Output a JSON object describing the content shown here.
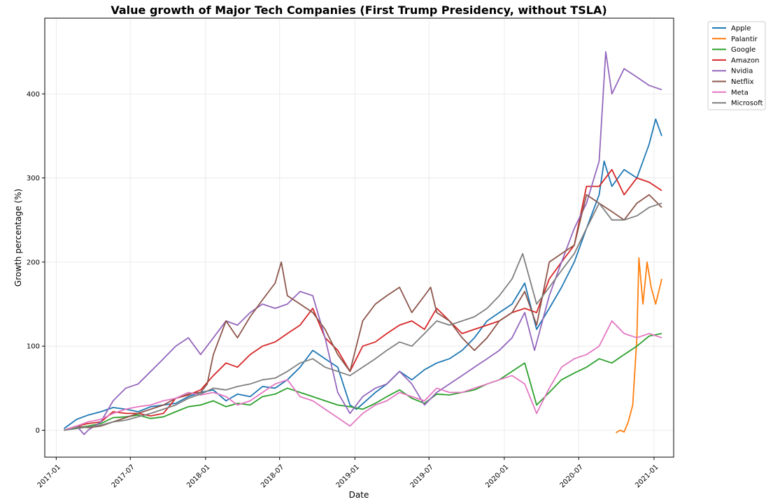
{
  "chart_data": {
    "type": "line",
    "title": "Value growth of Major Tech Companies (First Trump Presidency, without TSLA)",
    "xlabel": "Date",
    "ylabel": "Growth percentage (%)",
    "x_range": [
      "2016-12-04",
      "2021-02-18"
    ],
    "ylim": [
      -32,
      490
    ],
    "grid": true,
    "legend_position": "outside-top-right",
    "x_ticks": [
      "2017-01",
      "2017-07",
      "2018-01",
      "2018-07",
      "2019-01",
      "2019-07",
      "2020-01",
      "2020-07",
      "2021-01"
    ],
    "y_ticks": [
      0,
      100,
      200,
      300,
      400
    ],
    "series": [
      {
        "name": "Apple",
        "color": "#1f77b4",
        "x": [
          "2017-01-20",
          "2017-02-20",
          "2017-03-20",
          "2017-04-20",
          "2017-05-20",
          "2017-06-20",
          "2017-07-20",
          "2017-08-20",
          "2017-09-20",
          "2017-10-20",
          "2017-11-20",
          "2017-12-20",
          "2018-01-20",
          "2018-02-20",
          "2018-03-20",
          "2018-04-20",
          "2018-05-20",
          "2018-06-20",
          "2018-07-20",
          "2018-08-20",
          "2018-09-20",
          "2018-10-20",
          "2018-11-20",
          "2018-12-20",
          "2019-01-05",
          "2019-02-20",
          "2019-03-20",
          "2019-04-20",
          "2019-05-20",
          "2019-06-20",
          "2019-07-20",
          "2019-08-20",
          "2019-09-20",
          "2019-10-20",
          "2019-11-20",
          "2019-12-20",
          "2020-01-20",
          "2020-02-20",
          "2020-03-20",
          "2020-04-20",
          "2020-05-20",
          "2020-06-20",
          "2020-07-20",
          "2020-08-20",
          "2020-09-01",
          "2020-09-20",
          "2020-10-20",
          "2020-11-20",
          "2020-12-20",
          "2021-01-05",
          "2021-01-20"
        ],
        "values": [
          2,
          13,
          18,
          22,
          27,
          25,
          22,
          28,
          30,
          32,
          40,
          45,
          48,
          35,
          43,
          40,
          52,
          50,
          60,
          75,
          95,
          85,
          75,
          30,
          25,
          45,
          55,
          70,
          60,
          72,
          80,
          85,
          95,
          110,
          130,
          140,
          150,
          175,
          120,
          145,
          170,
          200,
          240,
          280,
          320,
          290,
          310,
          300,
          340,
          370,
          350
        ]
      },
      {
        "name": "Palantir",
        "color": "#ff7f0e",
        "x": [
          "2020-09-30",
          "2020-10-10",
          "2020-10-20",
          "2020-10-30",
          "2020-11-10",
          "2020-11-20",
          "2020-11-25",
          "2020-12-05",
          "2020-12-15",
          "2020-12-25",
          "2021-01-05",
          "2021-01-20"
        ],
        "values": [
          -3,
          0,
          -2,
          10,
          30,
          110,
          205,
          150,
          200,
          170,
          150,
          180
        ]
      },
      {
        "name": "Google",
        "color": "#2ca02c",
        "x": [
          "2017-01-20",
          "2017-02-20",
          "2017-03-20",
          "2017-04-20",
          "2017-05-20",
          "2017-06-20",
          "2017-07-20",
          "2017-08-20",
          "2017-09-20",
          "2017-10-20",
          "2017-11-20",
          "2017-12-20",
          "2018-01-20",
          "2018-02-20",
          "2018-03-20",
          "2018-04-20",
          "2018-05-20",
          "2018-06-20",
          "2018-07-20",
          "2018-08-20",
          "2018-09-20",
          "2018-10-20",
          "2018-11-20",
          "2018-12-20",
          "2019-01-20",
          "2019-02-20",
          "2019-03-20",
          "2019-04-20",
          "2019-05-20",
          "2019-06-20",
          "2019-07-20",
          "2019-08-20",
          "2019-09-20",
          "2019-10-20",
          "2019-11-20",
          "2019-12-20",
          "2020-01-20",
          "2020-02-20",
          "2020-03-20",
          "2020-04-20",
          "2020-05-20",
          "2020-06-20",
          "2020-07-20",
          "2020-08-20",
          "2020-09-20",
          "2020-10-20",
          "2020-11-20",
          "2020-12-20",
          "2021-01-20"
        ],
        "values": [
          0,
          3,
          5,
          8,
          15,
          16,
          18,
          14,
          16,
          22,
          28,
          30,
          35,
          28,
          32,
          30,
          40,
          43,
          50,
          45,
          40,
          35,
          30,
          28,
          25,
          32,
          40,
          48,
          38,
          32,
          43,
          42,
          45,
          48,
          55,
          60,
          70,
          80,
          30,
          45,
          60,
          68,
          75,
          85,
          80,
          90,
          100,
          112,
          115
        ]
      },
      {
        "name": "Amazon",
        "color": "#d62728",
        "x": [
          "2017-01-20",
          "2017-02-20",
          "2017-03-20",
          "2017-04-20",
          "2017-05-20",
          "2017-06-20",
          "2017-07-20",
          "2017-08-20",
          "2017-09-20",
          "2017-10-20",
          "2017-11-20",
          "2017-12-20",
          "2018-01-20",
          "2018-02-20",
          "2018-03-20",
          "2018-04-20",
          "2018-05-20",
          "2018-06-20",
          "2018-07-20",
          "2018-08-20",
          "2018-09-20",
          "2018-10-20",
          "2018-11-20",
          "2018-12-20",
          "2019-01-20",
          "2019-02-20",
          "2019-03-20",
          "2019-04-20",
          "2019-05-20",
          "2019-06-20",
          "2019-07-20",
          "2019-08-20",
          "2019-09-20",
          "2019-10-20",
          "2019-11-20",
          "2019-12-20",
          "2020-01-20",
          "2020-02-20",
          "2020-03-20",
          "2020-04-20",
          "2020-05-20",
          "2020-06-20",
          "2020-07-20",
          "2020-08-20",
          "2020-09-20",
          "2020-10-20",
          "2020-11-20",
          "2020-12-20",
          "2021-01-20"
        ],
        "values": [
          0,
          5,
          8,
          10,
          22,
          20,
          20,
          17,
          20,
          38,
          42,
          48,
          65,
          80,
          75,
          90,
          100,
          105,
          115,
          125,
          145,
          110,
          95,
          70,
          100,
          105,
          115,
          125,
          130,
          120,
          145,
          130,
          115,
          120,
          125,
          130,
          140,
          145,
          140,
          180,
          200,
          220,
          290,
          290,
          310,
          280,
          300,
          295,
          285
        ]
      },
      {
        "name": "Nvidia",
        "color": "#9467bd",
        "x": [
          "2017-01-20",
          "2017-02-20",
          "2017-03-10",
          "2017-03-20",
          "2017-04-20",
          "2017-05-20",
          "2017-06-20",
          "2017-07-20",
          "2017-08-20",
          "2017-09-20",
          "2017-10-20",
          "2017-11-20",
          "2017-12-20",
          "2018-01-20",
          "2018-02-20",
          "2018-03-20",
          "2018-04-20",
          "2018-05-20",
          "2018-06-20",
          "2018-07-20",
          "2018-08-20",
          "2018-09-20",
          "2018-10-20",
          "2018-11-20",
          "2018-12-20",
          "2019-01-20",
          "2019-02-20",
          "2019-03-20",
          "2019-04-20",
          "2019-05-20",
          "2019-06-20",
          "2019-07-20",
          "2019-08-20",
          "2019-09-20",
          "2019-10-20",
          "2019-11-20",
          "2019-12-20",
          "2020-01-20",
          "2020-02-20",
          "2020-03-15",
          "2020-04-20",
          "2020-05-20",
          "2020-06-20",
          "2020-07-20",
          "2020-08-20",
          "2020-09-05",
          "2020-09-20",
          "2020-10-20",
          "2020-11-20",
          "2020-12-20",
          "2021-01-20"
        ],
        "values": [
          0,
          5,
          -5,
          0,
          10,
          35,
          50,
          55,
          70,
          85,
          100,
          110,
          90,
          110,
          130,
          125,
          140,
          150,
          145,
          150,
          165,
          160,
          110,
          45,
          20,
          40,
          50,
          55,
          70,
          55,
          30,
          45,
          55,
          65,
          75,
          85,
          95,
          110,
          140,
          95,
          160,
          200,
          240,
          270,
          320,
          450,
          400,
          430,
          420,
          410,
          405
        ]
      },
      {
        "name": "Netflix",
        "color": "#8c564b",
        "x": [
          "2017-01-20",
          "2017-02-20",
          "2017-03-20",
          "2017-04-20",
          "2017-05-20",
          "2017-06-20",
          "2017-07-20",
          "2017-08-20",
          "2017-09-20",
          "2017-10-20",
          "2017-11-20",
          "2017-12-20",
          "2018-01-05",
          "2018-01-20",
          "2018-02-20",
          "2018-03-20",
          "2018-04-20",
          "2018-05-20",
          "2018-06-20",
          "2018-07-05",
          "2018-07-20",
          "2018-08-20",
          "2018-09-20",
          "2018-10-20",
          "2018-11-20",
          "2018-12-20",
          "2019-01-20",
          "2019-02-20",
          "2019-03-20",
          "2019-04-20",
          "2019-05-20",
          "2019-06-20",
          "2019-07-05",
          "2019-07-20",
          "2019-08-20",
          "2019-09-20",
          "2019-10-20",
          "2019-11-20",
          "2019-12-20",
          "2020-01-20",
          "2020-02-20",
          "2020-03-20",
          "2020-04-20",
          "2020-05-20",
          "2020-06-20",
          "2020-07-20",
          "2020-08-20",
          "2020-09-20",
          "2020-10-20",
          "2020-11-20",
          "2020-12-20",
          "2021-01-20"
        ],
        "values": [
          0,
          5,
          3,
          5,
          10,
          15,
          20,
          25,
          30,
          38,
          43,
          45,
          55,
          90,
          130,
          110,
          135,
          155,
          175,
          200,
          160,
          150,
          140,
          120,
          90,
          70,
          130,
          150,
          160,
          170,
          140,
          160,
          170,
          140,
          130,
          110,
          95,
          110,
          130,
          140,
          165,
          125,
          200,
          210,
          220,
          280,
          270,
          260,
          250,
          270,
          280,
          265
        ]
      },
      {
        "name": "Meta",
        "color": "#e377c2",
        "x": [
          "2017-01-20",
          "2017-02-20",
          "2017-03-20",
          "2017-04-20",
          "2017-05-20",
          "2017-06-20",
          "2017-07-20",
          "2017-08-20",
          "2017-09-20",
          "2017-10-20",
          "2017-11-20",
          "2017-12-20",
          "2018-01-20",
          "2018-02-20",
          "2018-03-20",
          "2018-04-20",
          "2018-05-20",
          "2018-06-20",
          "2018-07-20",
          "2018-08-20",
          "2018-09-20",
          "2018-10-20",
          "2018-11-20",
          "2018-12-20",
          "2019-01-20",
          "2019-02-20",
          "2019-03-20",
          "2019-04-20",
          "2019-05-20",
          "2019-06-20",
          "2019-07-20",
          "2019-08-20",
          "2019-09-20",
          "2019-10-20",
          "2019-11-20",
          "2019-12-20",
          "2020-01-20",
          "2020-02-20",
          "2020-03-20",
          "2020-04-20",
          "2020-05-20",
          "2020-06-20",
          "2020-07-20",
          "2020-08-20",
          "2020-09-20",
          "2020-10-20",
          "2020-11-20",
          "2020-12-20",
          "2021-01-20"
        ],
        "values": [
          0,
          5,
          10,
          13,
          20,
          25,
          28,
          30,
          35,
          38,
          45,
          42,
          45,
          40,
          30,
          35,
          45,
          55,
          60,
          40,
          35,
          25,
          15,
          5,
          20,
          30,
          35,
          45,
          40,
          35,
          50,
          45,
          45,
          50,
          55,
          60,
          65,
          55,
          20,
          50,
          75,
          85,
          90,
          100,
          130,
          115,
          110,
          115,
          110
        ]
      },
      {
        "name": "Microsoft",
        "color": "#7f7f7f",
        "x": [
          "2017-01-20",
          "2017-02-20",
          "2017-03-20",
          "2017-04-20",
          "2017-05-20",
          "2017-06-20",
          "2017-07-20",
          "2017-08-20",
          "2017-09-20",
          "2017-10-20",
          "2017-11-20",
          "2017-12-20",
          "2018-01-20",
          "2018-02-20",
          "2018-03-20",
          "2018-04-20",
          "2018-05-20",
          "2018-06-20",
          "2018-07-20",
          "2018-08-20",
          "2018-09-20",
          "2018-10-20",
          "2018-11-20",
          "2018-12-20",
          "2019-01-20",
          "2019-02-20",
          "2019-03-20",
          "2019-04-20",
          "2019-05-20",
          "2019-06-20",
          "2019-07-20",
          "2019-08-20",
          "2019-09-20",
          "2019-10-20",
          "2019-11-20",
          "2019-12-20",
          "2020-01-20",
          "2020-02-15",
          "2020-03-20",
          "2020-04-20",
          "2020-05-20",
          "2020-06-20",
          "2020-07-20",
          "2020-08-20",
          "2020-09-20",
          "2020-10-20",
          "2020-11-20",
          "2020-12-20",
          "2021-01-20"
        ],
        "values": [
          0,
          2,
          4,
          6,
          10,
          12,
          16,
          20,
          25,
          30,
          38,
          43,
          50,
          48,
          52,
          55,
          60,
          62,
          70,
          80,
          85,
          75,
          70,
          65,
          75,
          85,
          95,
          105,
          100,
          115,
          130,
          125,
          130,
          135,
          145,
          160,
          180,
          210,
          150,
          170,
          190,
          210,
          240,
          270,
          250,
          250,
          255,
          265,
          270
        ]
      }
    ]
  }
}
